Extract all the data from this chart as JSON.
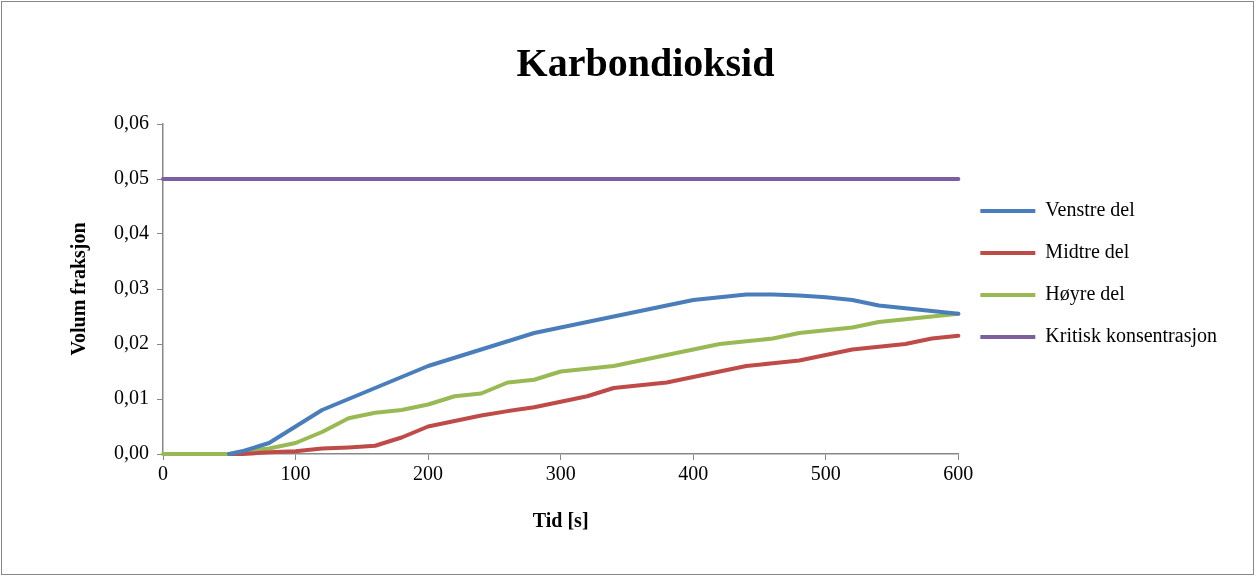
{
  "chart_data": {
    "type": "line",
    "title": "Karbondioksid",
    "xlabel": "Tid [s]",
    "ylabel": "Volum fraksjon",
    "x": [
      0,
      20,
      40,
      50,
      60,
      80,
      100,
      120,
      140,
      160,
      180,
      200,
      220,
      240,
      260,
      280,
      300,
      320,
      340,
      360,
      380,
      400,
      420,
      440,
      460,
      480,
      500,
      520,
      540,
      560,
      580,
      600
    ],
    "series": [
      {
        "name": "Venstre del",
        "color": "#4a7ebb",
        "values": [
          null,
          null,
          null,
          0,
          0.0005,
          0.002,
          0.005,
          0.008,
          0.01,
          0.012,
          0.014,
          0.016,
          0.0175,
          0.019,
          0.0205,
          0.022,
          0.023,
          0.024,
          0.025,
          0.026,
          0.027,
          0.028,
          0.0285,
          0.029,
          0.029,
          0.0288,
          0.0285,
          0.028,
          0.027,
          0.0265,
          0.026,
          0.0255
        ]
      },
      {
        "name": "Midtre del",
        "color": "#be4b48",
        "values": [
          null,
          null,
          null,
          0,
          0,
          0.0003,
          0.0005,
          0.001,
          0.0012,
          0.0015,
          0.003,
          0.005,
          0.006,
          0.007,
          0.0078,
          0.0085,
          0.0095,
          0.0105,
          0.012,
          0.0125,
          0.013,
          0.014,
          0.015,
          0.016,
          0.0165,
          0.017,
          0.018,
          0.019,
          0.0195,
          0.02,
          0.021,
          0.0215
        ]
      },
      {
        "name": "Høyre del",
        "color": "#98b954",
        "values": [
          0,
          0,
          0,
          0,
          0.0005,
          0.001,
          0.002,
          0.004,
          0.0065,
          0.0075,
          0.008,
          0.009,
          0.0105,
          0.011,
          0.013,
          0.0135,
          0.015,
          0.0155,
          0.016,
          0.017,
          0.018,
          0.019,
          0.02,
          0.0205,
          0.021,
          0.022,
          0.0225,
          0.023,
          0.024,
          0.0245,
          0.025,
          0.0255
        ]
      },
      {
        "name": "Kritisk konsentrasjon",
        "color": "#7d5fa0",
        "x": [
          0,
          600
        ],
        "values": [
          0.05,
          0.05
        ]
      }
    ],
    "xlim": [
      0,
      600
    ],
    "xticks": [
      0,
      100,
      200,
      300,
      400,
      500,
      600
    ],
    "ylim": [
      0,
      0.06
    ],
    "yticks": [
      {
        "value": 0,
        "label": "0,00"
      },
      {
        "value": 0.01,
        "label": "0,01"
      },
      {
        "value": 0.02,
        "label": "0,02"
      },
      {
        "value": 0.03,
        "label": "0,03"
      },
      {
        "value": 0.04,
        "label": "0,04"
      },
      {
        "value": 0.05,
        "label": "0,05"
      },
      {
        "value": 0.06,
        "label": "0,06"
      }
    ],
    "grid": false,
    "legend": "right",
    "marker": "none",
    "line_style": "solid"
  }
}
